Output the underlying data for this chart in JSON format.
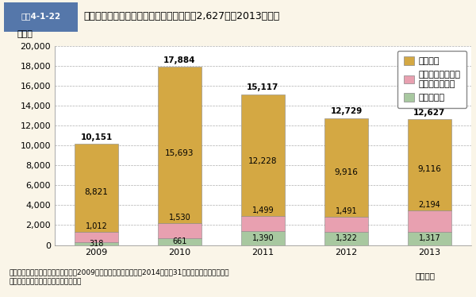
{
  "header_label": "図表4-1-22",
  "header_title": "消費者庁に通知された消費者事故等は１万2,627件（2013年度）",
  "ylabel": "（件）",
  "xlabel_note": "（年度）",
  "years": [
    "2009",
    "2010",
    "2011",
    "2012",
    "2013"
  ],
  "totals": [
    10151,
    17884,
    15117,
    12729,
    12627
  ],
  "zaisanjikou": [
    8821,
    15693,
    12228,
    9916,
    9116
  ],
  "seimei": [
    1012,
    1530,
    1499,
    1491,
    2194
  ],
  "jidai": [
    318,
    661,
    1390,
    1322,
    1317
  ],
  "color_zaisanjikou": "#D4A843",
  "color_seimei": "#E8A0B0",
  "color_jidai": "#A8C8A0",
  "ylim": [
    0,
    20000
  ],
  "yticks": [
    0,
    2000,
    4000,
    6000,
    8000,
    10000,
    12000,
    14000,
    16000,
    18000,
    20000
  ],
  "legend_labels": [
    "財産事案",
    "重大事故等を除く\n生命身体事故等",
    "重大事故等"
  ],
  "bg_color": "#FAF5E8",
  "plot_bg": "#FFFFFF",
  "header_bg": "#C5D5E8",
  "header_label_bg": "#5577AA",
  "footnote": "（備考）　消費者安全法に基づき、2009年９月消費者庁設置から2014年３月31日までに消費者庁へ通知\n　　　　された消費者事故等の件数。"
}
